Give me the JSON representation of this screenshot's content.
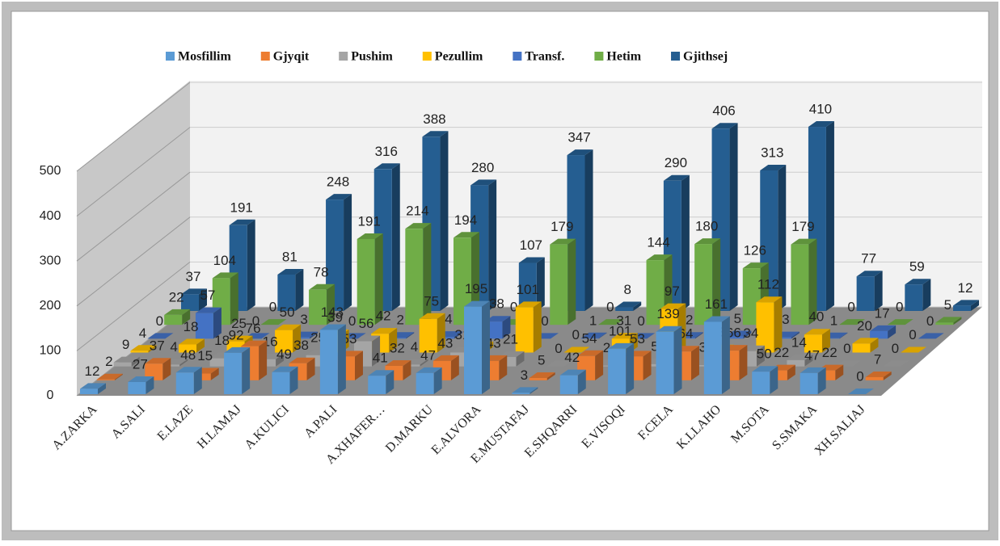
{
  "chart_data": {
    "type": "bar3d",
    "categories": [
      "A.ZARKA",
      "A.SALI",
      "E.LAZE",
      "H.LAMAJ",
      "A.KULICI",
      "A.PALI",
      "A.XHAFER…",
      "D.MARKU",
      "E.ALVORA",
      "E.MUSTAFAJ",
      "E.SHQARRI",
      "E.VISOQI",
      "F.CELA",
      "K.LLAHO",
      "M.SOTA",
      "S.SMAKA",
      "XH.SALIAJ"
    ],
    "series": [
      {
        "name": "Mosfillim",
        "color": "#5b9bd5",
        "values": [
          12,
          27,
          48,
          92,
          49,
          143,
          41,
          47,
          195,
          3,
          42,
          101,
          139,
          161,
          50,
          47,
          0
        ]
      },
      {
        "name": "Gjyqit",
        "color": "#ed7d31",
        "values": [
          2,
          37,
          15,
          76,
          38,
          53,
          32,
          43,
          43,
          5,
          54,
          53,
          64,
          66,
          22,
          22,
          7
        ]
      },
      {
        "name": "Pushim",
        "color": "#a5a5a5",
        "values": [
          9,
          4,
          18,
          16,
          25,
          56,
          4,
          31,
          21,
          0,
          2,
          5,
          3,
          34,
          14,
          0,
          0
        ]
      },
      {
        "name": "Pezullim",
        "color": "#ffc000",
        "values": [
          4,
          18,
          25,
          50,
          39,
          42,
          75,
          12,
          101,
          0,
          31,
          97,
          5,
          112,
          40,
          20,
          0
        ]
      },
      {
        "name": "Transf.",
        "color": "#4472c4",
        "values": [
          0,
          57,
          0,
          3,
          0,
          2,
          4,
          38,
          0,
          1,
          0,
          2,
          5,
          3,
          1,
          17,
          0
        ]
      },
      {
        "name": "Hetim",
        "color": "#70ad47",
        "values": [
          22,
          104,
          0,
          78,
          191,
          214,
          194,
          0,
          179,
          0,
          144,
          180,
          126,
          179,
          0,
          0,
          5
        ]
      },
      {
        "name": "Gjithsej",
        "color": "#255e91",
        "values": [
          37,
          191,
          81,
          248,
          316,
          388,
          280,
          107,
          347,
          8,
          290,
          406,
          313,
          410,
          77,
          59,
          12
        ]
      }
    ],
    "ylim": [
      0,
      500
    ],
    "yticks": [
      0,
      100,
      200,
      300,
      400,
      500
    ],
    "grid": true,
    "legend": "top"
  }
}
